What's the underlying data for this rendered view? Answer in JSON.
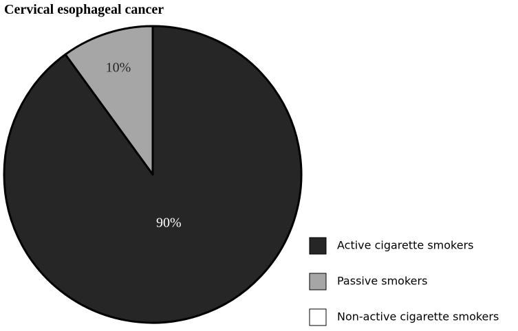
{
  "chart_data": {
    "type": "pie",
    "title": "Cervical esophageal cancer",
    "categories": [
      "Active cigarette smokers",
      "Passive smokers",
      "Non-active cigarette smokers"
    ],
    "values": [
      90,
      10,
      0
    ],
    "value_labels": [
      "90%",
      "10%",
      null
    ],
    "colors": [
      "#262626",
      "#a6a6a6",
      "#ffffff"
    ],
    "label_colors": [
      "#ffffff",
      "#262626",
      "#262626"
    ],
    "legend": "lower right"
  }
}
